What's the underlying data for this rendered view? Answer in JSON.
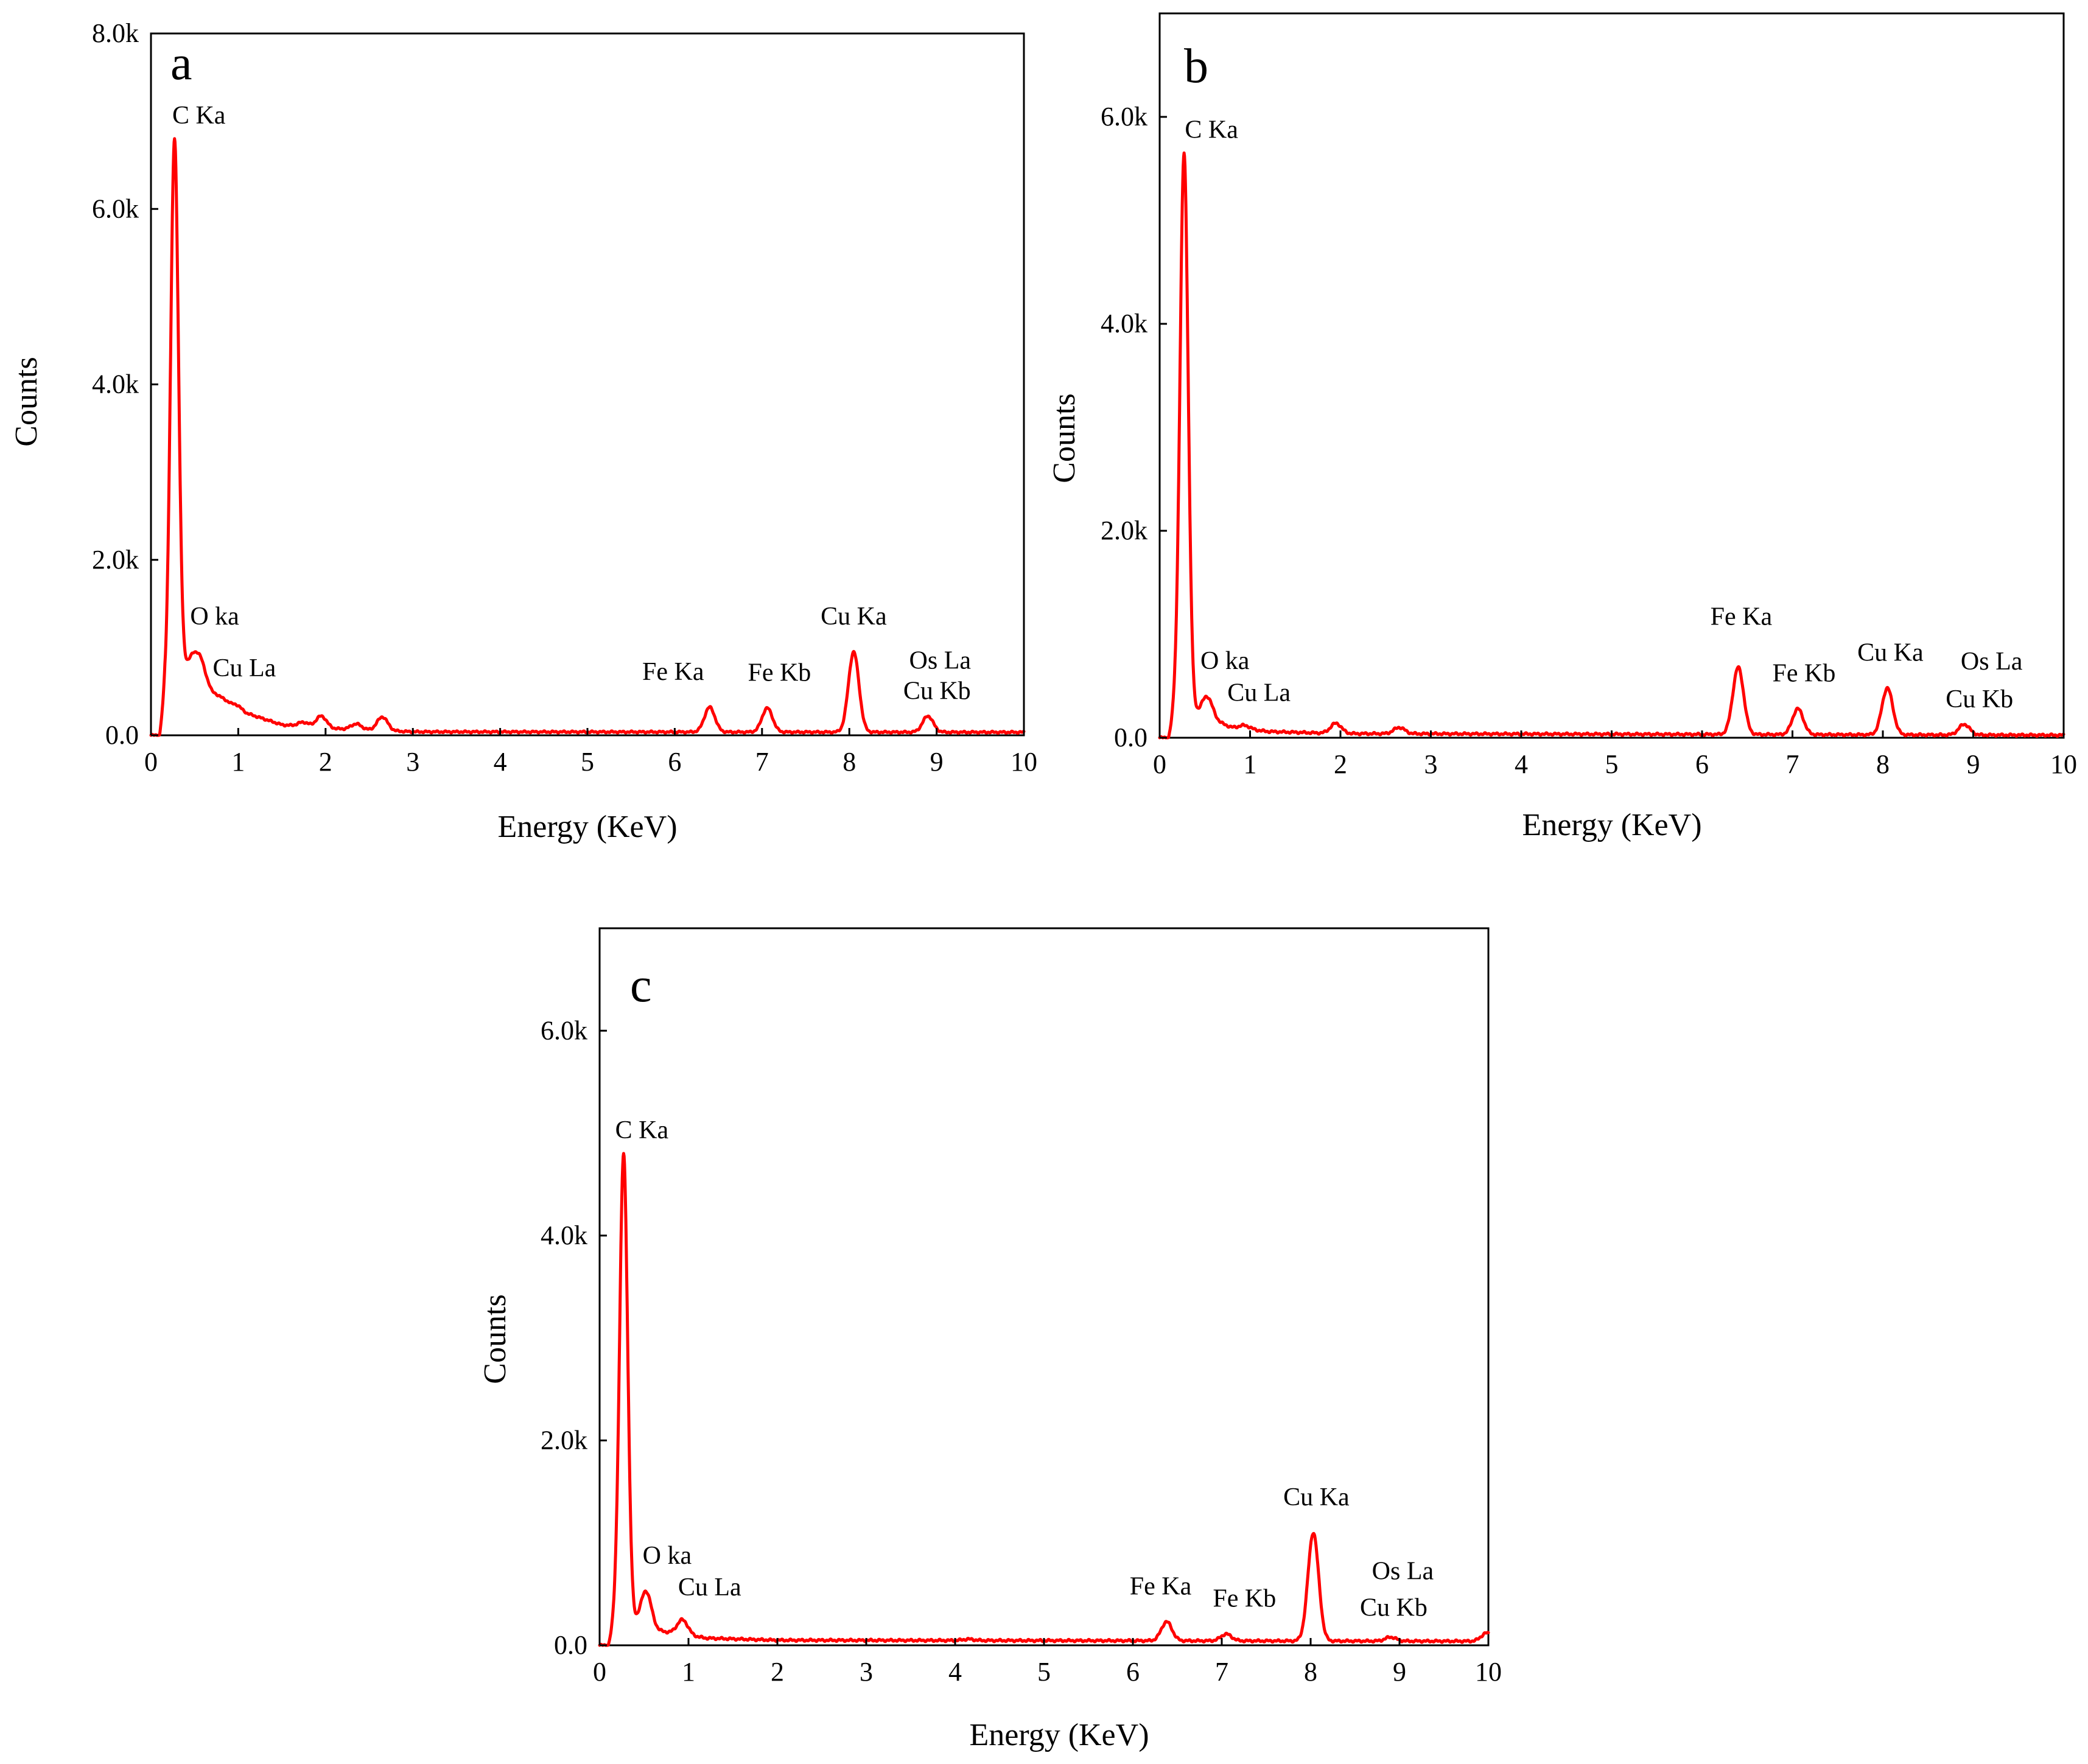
{
  "colors": {
    "spectrum": "#ff0000",
    "axes": "#000000",
    "background": "#ffffff"
  },
  "chart_data": [
    {
      "id": "a",
      "panel_label": "a",
      "type": "line",
      "xlabel": "Energy (KeV)",
      "ylabel": "Counts",
      "xlim": [
        0,
        10
      ],
      "ylim": [
        0,
        8000
      ],
      "x_ticks": [
        0,
        1,
        2,
        3,
        4,
        5,
        6,
        7,
        8,
        9,
        10
      ],
      "y_ticks": [
        0,
        2000,
        4000,
        6000,
        8000
      ],
      "y_tick_labels": [
        "0.0",
        "2.0k",
        "4.0k",
        "6.0k",
        "8.0k"
      ],
      "grid": false,
      "baseline": 40,
      "continuum": [
        [
          0.1,
          0
        ],
        [
          0.16,
          500
        ],
        [
          0.5,
          900
        ],
        [
          0.7,
          500
        ],
        [
          1.1,
          250
        ],
        [
          1.5,
          120
        ],
        [
          2.0,
          80
        ],
        [
          3.0,
          40
        ],
        [
          10.0,
          35
        ]
      ],
      "peaks": [
        {
          "x": 0.27,
          "y": 6800,
          "label": "C Ka"
        },
        {
          "x": 0.52,
          "y": 950,
          "label": "O ka"
        },
        {
          "x": 0.93,
          "y": 360,
          "label": "Cu La"
        },
        {
          "x": 1.74,
          "y": 150,
          "label": ""
        },
        {
          "x": 1.95,
          "y": 220,
          "label": ""
        },
        {
          "x": 2.35,
          "y": 130,
          "label": ""
        },
        {
          "x": 2.65,
          "y": 210,
          "label": ""
        },
        {
          "x": 6.4,
          "y": 320,
          "label": "Fe Ka"
        },
        {
          "x": 7.06,
          "y": 310,
          "label": "Fe Kb"
        },
        {
          "x": 8.05,
          "y": 950,
          "label": "Cu Ka"
        },
        {
          "x": 8.9,
          "y": 220,
          "label": "Os La"
        },
        {
          "x": 8.9,
          "y": 0,
          "label": "Cu Kb"
        }
      ]
    },
    {
      "id": "b",
      "panel_label": "b",
      "type": "line",
      "xlabel": "Energy (KeV)",
      "ylabel": "Counts",
      "xlim": [
        0,
        10
      ],
      "ylim": [
        0,
        7000
      ],
      "x_ticks": [
        0,
        1,
        2,
        3,
        4,
        5,
        6,
        7,
        8,
        9,
        10
      ],
      "y_ticks": [
        0,
        2000,
        4000,
        6000
      ],
      "y_tick_labels": [
        "0.0",
        "2.0k",
        "4.0k",
        "6.0k"
      ],
      "grid": false,
      "baseline": 30,
      "continuum": [
        [
          0.1,
          0
        ],
        [
          0.17,
          300
        ],
        [
          0.5,
          200
        ],
        [
          0.8,
          100
        ],
        [
          1.2,
          60
        ],
        [
          2.0,
          40
        ],
        [
          10.0,
          25
        ]
      ],
      "peaks": [
        {
          "x": 0.27,
          "y": 5650,
          "label": "C Ka"
        },
        {
          "x": 0.52,
          "y": 400,
          "label": "O ka"
        },
        {
          "x": 0.93,
          "y": 120,
          "label": "Cu La"
        },
        {
          "x": 1.95,
          "y": 140,
          "label": ""
        },
        {
          "x": 2.65,
          "y": 100,
          "label": ""
        },
        {
          "x": 6.4,
          "y": 680,
          "label": "Fe Ka"
        },
        {
          "x": 7.06,
          "y": 280,
          "label": "Fe Kb"
        },
        {
          "x": 8.05,
          "y": 480,
          "label": "Cu Ka"
        },
        {
          "x": 8.9,
          "y": 130,
          "label": "Os La"
        },
        {
          "x": 8.9,
          "y": 0,
          "label": "Cu Kb"
        }
      ]
    },
    {
      "id": "c",
      "panel_label": "c",
      "type": "line",
      "xlabel": "Energy (KeV)",
      "ylabel": "Counts",
      "xlim": [
        0,
        10
      ],
      "ylim": [
        0,
        7000
      ],
      "x_ticks": [
        0,
        1,
        2,
        3,
        4,
        5,
        6,
        7,
        8,
        9,
        10
      ],
      "y_ticks": [
        0,
        2000,
        4000,
        6000
      ],
      "y_tick_labels": [
        "0.0",
        "2.0k",
        "4.0k",
        "6.0k"
      ],
      "grid": false,
      "baseline": 40,
      "continuum": [
        [
          0.1,
          0
        ],
        [
          0.18,
          300
        ],
        [
          0.6,
          150
        ],
        [
          1.2,
          70
        ],
        [
          2.0,
          50
        ],
        [
          10.0,
          40
        ]
      ],
      "peaks": [
        {
          "x": 0.27,
          "y": 4800,
          "label": "C Ka"
        },
        {
          "x": 0.52,
          "y": 530,
          "label": "O ka"
        },
        {
          "x": 0.93,
          "y": 250,
          "label": "Cu La"
        },
        {
          "x": 4.15,
          "y": 60,
          "label": ""
        },
        {
          "x": 6.38,
          "y": 230,
          "label": "Fe Ka"
        },
        {
          "x": 7.05,
          "y": 110,
          "label": "Fe Kb"
        },
        {
          "x": 8.03,
          "y": 1100,
          "label": "Cu Ka"
        },
        {
          "x": 8.9,
          "y": 80,
          "label": "Os La"
        },
        {
          "x": 8.9,
          "y": 0,
          "label": "Cu Kb"
        },
        {
          "x": 9.98,
          "y": 120,
          "label": ""
        }
      ]
    }
  ]
}
